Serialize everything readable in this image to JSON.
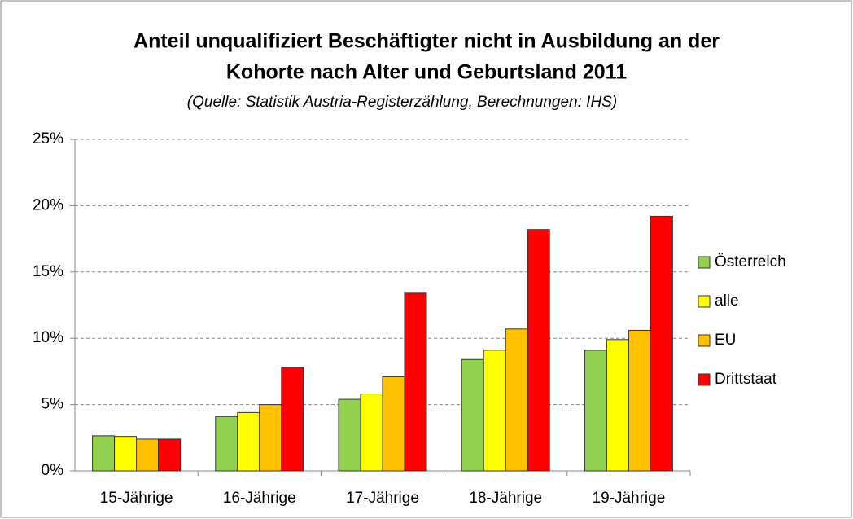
{
  "chart_data": {
    "type": "bar",
    "title": [
      "Anteil unqualifiziert Beschäftigter nicht in Ausbildung an der",
      "Kohorte nach Alter und Geburtsland 2011"
    ],
    "subtitle": "(Quelle: Statistik Austria-Registerzählung, Berechnungen: IHS)",
    "categories": [
      "15-Jährige",
      "16-Jährige",
      "17-Jährige",
      "18-Jährige",
      "19-Jährige"
    ],
    "series": [
      {
        "name": "Österreich",
        "color": "#92d050",
        "values": [
          2.65,
          4.1,
          5.4,
          8.4,
          9.1
        ]
      },
      {
        "name": "alle",
        "color": "#ffff00",
        "values": [
          2.6,
          4.4,
          5.8,
          9.1,
          9.9
        ]
      },
      {
        "name": "EU",
        "color": "#ffc000",
        "values": [
          2.4,
          5.0,
          7.1,
          10.7,
          10.6
        ]
      },
      {
        "name": "Drittstaat",
        "color": "#ff0000",
        "values": [
          2.4,
          7.8,
          13.4,
          18.2,
          19.2
        ]
      }
    ],
    "ylim": [
      0,
      25
    ],
    "yticks": [
      {
        "value": 0,
        "label": "0%"
      },
      {
        "value": 5,
        "label": "5%"
      },
      {
        "value": 10,
        "label": "10%"
      },
      {
        "value": 15,
        "label": "15%"
      },
      {
        "value": 20,
        "label": "20%"
      },
      {
        "value": 25,
        "label": "25%"
      }
    ],
    "grid": true,
    "legend": "right"
  }
}
